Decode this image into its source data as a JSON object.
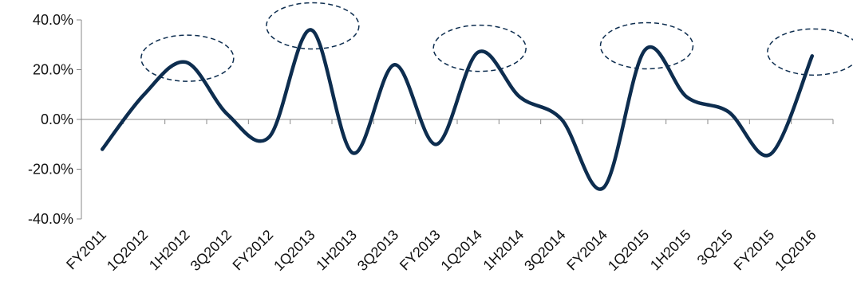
{
  "chart_data": {
    "type": "line",
    "categories": [
      "FY2011",
      "1Q2012",
      "1H2012",
      "3Q2012",
      "FY2012",
      "1Q2013",
      "1H2013",
      "3Q2013",
      "FY2013",
      "1Q2014",
      "1H2014",
      "3Q2014",
      "FY2014",
      "1Q2015",
      "1H2015",
      "3Q215",
      "FY2015",
      "1Q2016"
    ],
    "series": [
      {
        "values": [
          -12.0,
          10.0,
          23.0,
          2.0,
          -7.0,
          36.0,
          -13.5,
          22.0,
          -10.0,
          27.0,
          9.0,
          0.0,
          -27.5,
          28.0,
          9.0,
          3.0,
          -14.0,
          25.5
        ]
      }
    ],
    "ylim": [
      -40,
      40
    ],
    "yticks": [
      "40.0%",
      "20.0%",
      "0.0%",
      "-20.0%",
      "-40.0%"
    ],
    "ytick_values": [
      40,
      20,
      0,
      -20,
      -40
    ],
    "highlighted_points": [
      "1H2012",
      "1Q2013",
      "1Q2014",
      "1Q2015",
      "1Q2016"
    ],
    "grid": false,
    "colors": {
      "line": "#0d2d4f",
      "axis": "#888888",
      "highlight": "#0d2d4f"
    }
  }
}
